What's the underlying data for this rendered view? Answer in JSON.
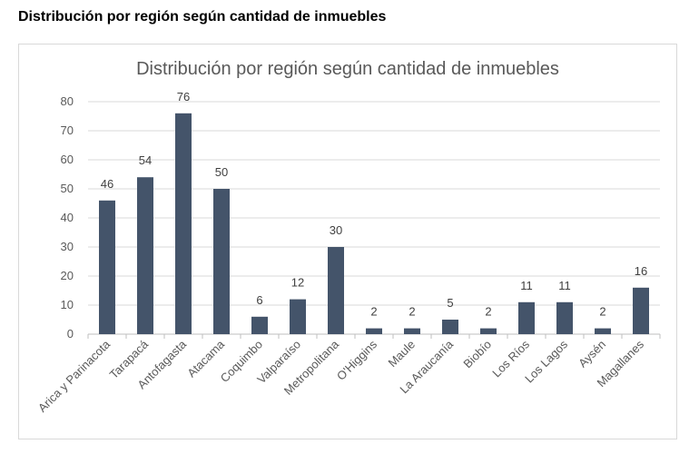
{
  "page": {
    "heading": "Distribución por región según cantidad de inmuebles"
  },
  "chart_data": {
    "type": "bar",
    "title": "Distribución por región según cantidad de inmuebles",
    "xlabel": "",
    "ylabel": "",
    "categories": [
      "Arica y Parinacota",
      "Tarapacá",
      "Antofagasta",
      "Atacama",
      "Coquimbo",
      "Valparaíso",
      "Metropolitana",
      "O'Higgins",
      "Maule",
      "La Araucanía",
      "Biobío",
      "Los Ríos",
      "Los Lagos",
      "Aysén",
      "Magallanes"
    ],
    "values": [
      46,
      54,
      76,
      50,
      6,
      12,
      30,
      2,
      2,
      5,
      2,
      11,
      11,
      2,
      16
    ],
    "ylim": [
      0,
      80
    ],
    "yticks": [
      0,
      10,
      20,
      30,
      40,
      50,
      60,
      70,
      80
    ],
    "grid": true,
    "legend": "none",
    "bar_color": "#44546a",
    "data_labels": true
  }
}
